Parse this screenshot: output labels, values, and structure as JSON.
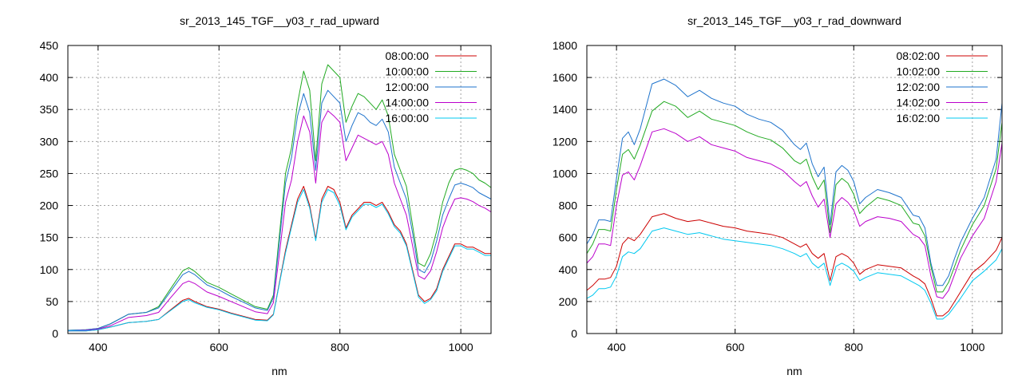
{
  "colors": {
    "s0": "#cc0000",
    "s1": "#22aa22",
    "s2": "#1e73cc",
    "s3": "#bb00cc",
    "s4": "#00c8f0",
    "grid": "#a0a0a0",
    "frame": "#000000"
  },
  "chart_data": [
    {
      "type": "line",
      "title": "sr_2013_145_TGF__y03_r_rad_upward",
      "xlabel": "nm",
      "ylabel": "",
      "xlim": [
        350,
        1050
      ],
      "ylim": [
        0,
        450
      ],
      "xticks": [
        400,
        600,
        800,
        1000
      ],
      "yticks": [
        0,
        50,
        100,
        150,
        200,
        250,
        300,
        350,
        400,
        450
      ],
      "grid": true,
      "legend_position": "top-right",
      "x": [
        350,
        380,
        400,
        420,
        450,
        480,
        500,
        520,
        540,
        550,
        560,
        580,
        600,
        620,
        640,
        660,
        680,
        690,
        700,
        710,
        720,
        730,
        740,
        750,
        760,
        770,
        780,
        790,
        800,
        810,
        820,
        830,
        840,
        850,
        860,
        870,
        880,
        890,
        900,
        910,
        920,
        930,
        940,
        950,
        960,
        970,
        980,
        990,
        1000,
        1010,
        1020,
        1030,
        1040,
        1050
      ],
      "series": [
        {
          "name": "08:00:00",
          "values": [
            4,
            4,
            6,
            10,
            17,
            19,
            22,
            37,
            52,
            55,
            50,
            42,
            38,
            32,
            27,
            22,
            21,
            30,
            80,
            130,
            170,
            210,
            230,
            200,
            148,
            210,
            230,
            225,
            205,
            165,
            185,
            195,
            205,
            205,
            200,
            205,
            190,
            170,
            160,
            140,
            100,
            60,
            50,
            55,
            70,
            100,
            120,
            140,
            140,
            135,
            135,
            130,
            125,
            125
          ]
        },
        {
          "name": "10:00:00",
          "values": [
            5,
            6,
            8,
            15,
            30,
            33,
            42,
            70,
            98,
            103,
            97,
            80,
            72,
            62,
            52,
            42,
            38,
            60,
            155,
            250,
            290,
            360,
            410,
            380,
            270,
            390,
            420,
            410,
            400,
            330,
            355,
            375,
            370,
            360,
            350,
            365,
            340,
            280,
            255,
            230,
            170,
            110,
            105,
            125,
            160,
            205,
            235,
            255,
            258,
            255,
            250,
            240,
            235,
            228
          ]
        },
        {
          "name": "12:00:00",
          "values": [
            5,
            6,
            8,
            15,
            30,
            33,
            40,
            66,
            92,
            97,
            92,
            76,
            68,
            58,
            49,
            40,
            36,
            56,
            145,
            235,
            275,
            340,
            375,
            345,
            255,
            360,
            380,
            370,
            360,
            300,
            325,
            345,
            340,
            330,
            325,
            335,
            315,
            260,
            235,
            210,
            158,
            100,
            95,
            112,
            145,
            185,
            210,
            232,
            235,
            232,
            228,
            220,
            215,
            210
          ]
        },
        {
          "name": "14:00:00",
          "values": [
            4,
            5,
            7,
            12,
            25,
            28,
            33,
            56,
            78,
            82,
            78,
            65,
            58,
            50,
            42,
            34,
            31,
            48,
            125,
            205,
            240,
            300,
            340,
            315,
            235,
            330,
            348,
            340,
            330,
            270,
            290,
            310,
            305,
            300,
            295,
            300,
            280,
            235,
            210,
            185,
            138,
            90,
            85,
            98,
            128,
            165,
            190,
            210,
            212,
            210,
            206,
            200,
            196,
            190
          ]
        },
        {
          "name": "16:00:00",
          "values": [
            4,
            4,
            6,
            10,
            17,
            19,
            22,
            36,
            50,
            53,
            48,
            41,
            37,
            31,
            26,
            21,
            20,
            29,
            78,
            126,
            166,
            205,
            225,
            196,
            145,
            205,
            225,
            220,
            200,
            162,
            182,
            192,
            202,
            202,
            197,
            202,
            187,
            167,
            157,
            137,
            97,
            57,
            47,
            53,
            67,
            97,
            117,
            137,
            137,
            132,
            132,
            127,
            122,
            122
          ]
        }
      ]
    },
    {
      "type": "line",
      "title": "sr_2013_145_TGF__y03_r_rad_downward",
      "xlabel": "nm",
      "ylabel": "",
      "xlim": [
        350,
        1050
      ],
      "ylim": [
        0,
        1800
      ],
      "xticks": [
        400,
        600,
        800,
        1000
      ],
      "yticks": [
        0,
        200,
        400,
        600,
        800,
        1000,
        1200,
        1400,
        1600,
        1800
      ],
      "grid": true,
      "legend_position": "top-right",
      "x": [
        350,
        360,
        370,
        380,
        390,
        400,
        410,
        420,
        430,
        440,
        460,
        480,
        500,
        520,
        540,
        560,
        580,
        600,
        620,
        640,
        660,
        680,
        700,
        710,
        720,
        730,
        740,
        750,
        760,
        770,
        780,
        790,
        800,
        810,
        820,
        840,
        860,
        880,
        900,
        910,
        920,
        930,
        940,
        950,
        960,
        970,
        980,
        1000,
        1020,
        1040,
        1050
      ],
      "series": [
        {
          "name": "08:02:00",
          "values": [
            270,
            300,
            340,
            340,
            350,
            420,
            560,
            600,
            580,
            620,
            730,
            750,
            720,
            700,
            710,
            690,
            670,
            660,
            640,
            630,
            620,
            600,
            560,
            540,
            560,
            500,
            470,
            500,
            330,
            480,
            500,
            480,
            440,
            370,
            400,
            430,
            420,
            410,
            360,
            340,
            310,
            220,
            110,
            110,
            140,
            200,
            260,
            380,
            440,
            520,
            600
          ]
        },
        {
          "name": "10:02:00",
          "values": [
            500,
            560,
            650,
            650,
            640,
            900,
            1120,
            1150,
            1090,
            1180,
            1390,
            1450,
            1420,
            1350,
            1390,
            1340,
            1320,
            1300,
            1260,
            1230,
            1210,
            1160,
            1080,
            1060,
            1090,
            980,
            900,
            960,
            630,
            930,
            970,
            940,
            870,
            750,
            790,
            850,
            830,
            800,
            690,
            680,
            610,
            420,
            260,
            260,
            320,
            420,
            520,
            680,
            800,
            1030,
            1320
          ]
        },
        {
          "name": "12:02:00",
          "values": [
            560,
            620,
            710,
            710,
            700,
            970,
            1220,
            1260,
            1180,
            1280,
            1560,
            1590,
            1550,
            1480,
            1520,
            1470,
            1440,
            1420,
            1370,
            1340,
            1320,
            1270,
            1180,
            1150,
            1190,
            1060,
            980,
            1040,
            680,
            1010,
            1050,
            1020,
            950,
            810,
            850,
            900,
            880,
            850,
            740,
            730,
            660,
            440,
            300,
            300,
            360,
            470,
            570,
            720,
            850,
            1090,
            1440
          ]
        },
        {
          "name": "14:02:00",
          "values": [
            440,
            480,
            560,
            560,
            550,
            800,
            990,
            1010,
            960,
            1050,
            1260,
            1280,
            1250,
            1200,
            1230,
            1180,
            1160,
            1140,
            1100,
            1080,
            1060,
            1020,
            950,
            920,
            950,
            860,
            790,
            840,
            600,
            810,
            850,
            820,
            770,
            670,
            700,
            730,
            720,
            700,
            620,
            600,
            550,
            360,
            230,
            220,
            270,
            370,
            470,
            610,
            720,
            950,
            1190
          ]
        },
        {
          "name": "16:02:00",
          "values": [
            220,
            240,
            280,
            280,
            290,
            360,
            480,
            510,
            500,
            530,
            640,
            660,
            640,
            620,
            630,
            610,
            590,
            580,
            570,
            560,
            550,
            530,
            500,
            480,
            500,
            440,
            410,
            440,
            300,
            420,
            440,
            420,
            390,
            330,
            350,
            380,
            370,
            360,
            320,
            300,
            270,
            190,
            90,
            90,
            120,
            170,
            220,
            330,
            390,
            460,
            530
          ]
        }
      ]
    }
  ]
}
